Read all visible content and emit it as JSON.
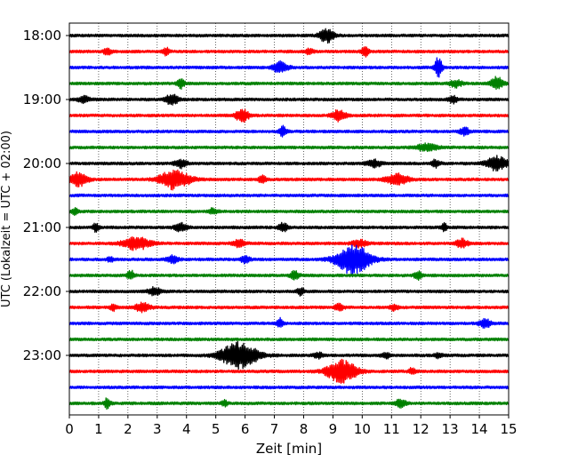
{
  "chart_data": {
    "type": "line",
    "subtype": "helicorder seismogram",
    "xlabel": "Zeit  [min]",
    "ylabel": "UTC (Lokalzeit = UTC + 02:00)",
    "xlim": [
      0,
      15
    ],
    "x_ticks": [
      "0",
      "1",
      "2",
      "3",
      "4",
      "5",
      "6",
      "7",
      "8",
      "9",
      "10",
      "11",
      "12",
      "13",
      "14",
      "15"
    ],
    "y_ticks": [
      "18:00",
      "19:00",
      "20:00",
      "21:00",
      "22:00",
      "23:00"
    ],
    "grid": "vertical dotted at each minute",
    "colors": [
      "#000000",
      "#ff0000",
      "#0000ff",
      "#008000"
    ],
    "traces": [
      {
        "start": "18:00",
        "color": "#000000",
        "events": [
          [
            8.8,
            1.0,
            0.25
          ]
        ]
      },
      {
        "start": "18:15",
        "color": "#ff0000",
        "events": [
          [
            1.3,
            0.5,
            0.12
          ],
          [
            3.3,
            0.5,
            0.12
          ],
          [
            8.2,
            0.4,
            0.12
          ],
          [
            10.1,
            0.7,
            0.12
          ]
        ]
      },
      {
        "start": "18:30",
        "color": "#0000ff",
        "events": [
          [
            7.2,
            0.8,
            0.25
          ],
          [
            12.6,
            1.5,
            0.12
          ]
        ]
      },
      {
        "start": "18:45",
        "color": "#008000",
        "events": [
          [
            3.8,
            0.7,
            0.12
          ],
          [
            13.2,
            0.5,
            0.2
          ],
          [
            14.6,
            0.9,
            0.2
          ]
        ]
      },
      {
        "start": "19:00",
        "color": "#000000",
        "events": [
          [
            0.5,
            0.4,
            0.2
          ],
          [
            3.5,
            0.8,
            0.2
          ],
          [
            13.1,
            0.5,
            0.15
          ]
        ]
      },
      {
        "start": "19:15",
        "color": "#ff0000",
        "events": [
          [
            5.9,
            0.9,
            0.22
          ],
          [
            9.2,
            0.8,
            0.22
          ]
        ]
      },
      {
        "start": "19:30",
        "color": "#0000ff",
        "events": [
          [
            7.3,
            0.7,
            0.12
          ],
          [
            13.5,
            0.6,
            0.15
          ]
        ]
      },
      {
        "start": "19:45",
        "color": "#008000",
        "events": [
          [
            12.2,
            0.5,
            0.35
          ]
        ]
      },
      {
        "start": "20:00",
        "color": "#000000",
        "events": [
          [
            3.8,
            0.6,
            0.2
          ],
          [
            10.4,
            0.5,
            0.25
          ],
          [
            12.5,
            0.5,
            0.15
          ],
          [
            14.6,
            1.0,
            0.35
          ]
        ]
      },
      {
        "start": "20:15",
        "color": "#ff0000",
        "events": [
          [
            0.3,
            1.0,
            0.3
          ],
          [
            3.6,
            1.4,
            0.5
          ],
          [
            6.6,
            0.7,
            0.12
          ],
          [
            11.2,
            0.8,
            0.35
          ]
        ]
      },
      {
        "start": "20:30",
        "color": "#0000ff",
        "events": []
      },
      {
        "start": "20:45",
        "color": "#008000",
        "events": [
          [
            0.2,
            0.5,
            0.12
          ],
          [
            4.9,
            0.4,
            0.15
          ]
        ]
      },
      {
        "start": "21:00",
        "color": "#000000",
        "events": [
          [
            0.9,
            0.6,
            0.1
          ],
          [
            3.8,
            0.6,
            0.2
          ],
          [
            7.3,
            0.6,
            0.15
          ],
          [
            12.8,
            0.5,
            0.1
          ]
        ]
      },
      {
        "start": "21:15",
        "color": "#ff0000",
        "events": [
          [
            2.3,
            0.9,
            0.45
          ],
          [
            5.8,
            0.5,
            0.2
          ],
          [
            9.9,
            0.5,
            0.25
          ],
          [
            13.4,
            0.6,
            0.2
          ]
        ]
      },
      {
        "start": "21:30",
        "color": "#0000ff",
        "events": [
          [
            1.4,
            0.4,
            0.1
          ],
          [
            3.5,
            0.5,
            0.2
          ],
          [
            6.0,
            0.5,
            0.15
          ],
          [
            9.7,
            2.2,
            0.55
          ]
        ]
      },
      {
        "start": "21:45",
        "color": "#008000",
        "events": [
          [
            2.1,
            0.7,
            0.12
          ],
          [
            7.7,
            0.6,
            0.15
          ],
          [
            11.9,
            0.6,
            0.12
          ]
        ]
      },
      {
        "start": "22:00",
        "color": "#000000",
        "events": [
          [
            2.9,
            0.6,
            0.2
          ],
          [
            7.9,
            0.5,
            0.12
          ]
        ]
      },
      {
        "start": "22:15",
        "color": "#ff0000",
        "events": [
          [
            1.5,
            0.5,
            0.1
          ],
          [
            2.5,
            0.6,
            0.25
          ],
          [
            9.2,
            0.5,
            0.15
          ],
          [
            11.1,
            0.4,
            0.15
          ]
        ]
      },
      {
        "start": "22:30",
        "color": "#0000ff",
        "events": [
          [
            7.2,
            0.7,
            0.1
          ],
          [
            14.2,
            0.6,
            0.2
          ]
        ]
      },
      {
        "start": "22:45",
        "color": "#008000",
        "events": []
      },
      {
        "start": "23:00",
        "color": "#000000",
        "events": [
          [
            5.8,
            1.9,
            0.6
          ],
          [
            8.5,
            0.4,
            0.15
          ],
          [
            10.8,
            0.4,
            0.15
          ],
          [
            12.6,
            0.3,
            0.15
          ]
        ]
      },
      {
        "start": "23:15",
        "color": "#ff0000",
        "events": [
          [
            9.3,
            1.6,
            0.5
          ],
          [
            11.7,
            0.5,
            0.1
          ]
        ]
      },
      {
        "start": "23:30",
        "color": "#0000ff",
        "events": []
      },
      {
        "start": "23:45",
        "color": "#008000",
        "events": [
          [
            1.3,
            0.8,
            0.1
          ],
          [
            5.3,
            0.4,
            0.1
          ],
          [
            11.3,
            0.5,
            0.2
          ]
        ]
      }
    ]
  }
}
